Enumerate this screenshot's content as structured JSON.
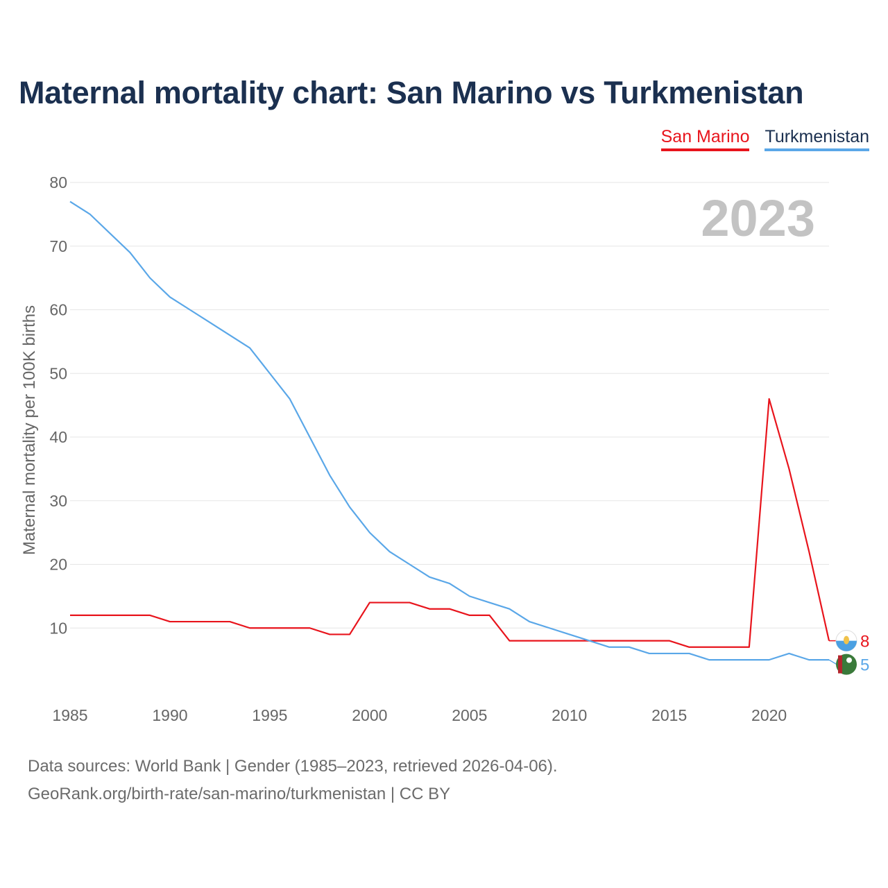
{
  "title": "Maternal mortality chart: San Marino vs Turkmenistan",
  "legend": [
    {
      "name": "San Marino",
      "color": "#e8141c"
    },
    {
      "name": "Turkmenistan",
      "color": "#5aa7e8"
    }
  ],
  "source": {
    "line1": "Data sources: World Bank | Gender (1985–2023, retrieved 2026-04-06).",
    "line2": "GeoRank.org/birth-rate/san-marino/turkmenistan | CC BY"
  },
  "chart_data": {
    "type": "line",
    "title": "Maternal mortality chart: San Marino vs Turkmenistan",
    "ylabel": "Maternal mortality per 100K births",
    "xlabel": "",
    "year_label": "2023",
    "x": [
      1985,
      1986,
      1987,
      1988,
      1989,
      1990,
      1991,
      1992,
      1993,
      1994,
      1995,
      1996,
      1997,
      1998,
      1999,
      2000,
      2001,
      2002,
      2003,
      2004,
      2005,
      2006,
      2007,
      2008,
      2009,
      2010,
      2011,
      2012,
      2013,
      2014,
      2015,
      2016,
      2017,
      2018,
      2019,
      2020,
      2021,
      2022,
      2023
    ],
    "xticks": [
      1985,
      1990,
      1995,
      2000,
      2005,
      2010,
      2015,
      2020
    ],
    "yticks": [
      10,
      20,
      30,
      40,
      50,
      60,
      70,
      80
    ],
    "xlim": [
      1985,
      2023
    ],
    "ylim": [
      0,
      80
    ],
    "series": [
      {
        "name": "San Marino",
        "color": "#e8141c",
        "end_label": "8",
        "values": [
          12,
          12,
          12,
          12,
          12,
          11,
          11,
          11,
          11,
          10,
          10,
          10,
          10,
          9,
          9,
          14,
          14,
          14,
          13,
          13,
          12,
          12,
          8,
          8,
          8,
          8,
          8,
          8,
          8,
          8,
          8,
          7,
          7,
          7,
          7,
          46,
          35,
          22,
          8
        ]
      },
      {
        "name": "Turkmenistan",
        "color": "#5aa7e8",
        "end_label": "5",
        "values": [
          77,
          75,
          72,
          69,
          65,
          62,
          60,
          58,
          56,
          54,
          50,
          46,
          40,
          34,
          29,
          25,
          22,
          20,
          18,
          17,
          15,
          14,
          13,
          11,
          10,
          9,
          8,
          7,
          7,
          6,
          6,
          6,
          5,
          5,
          5,
          5,
          6,
          5,
          5
        ]
      }
    ]
  }
}
